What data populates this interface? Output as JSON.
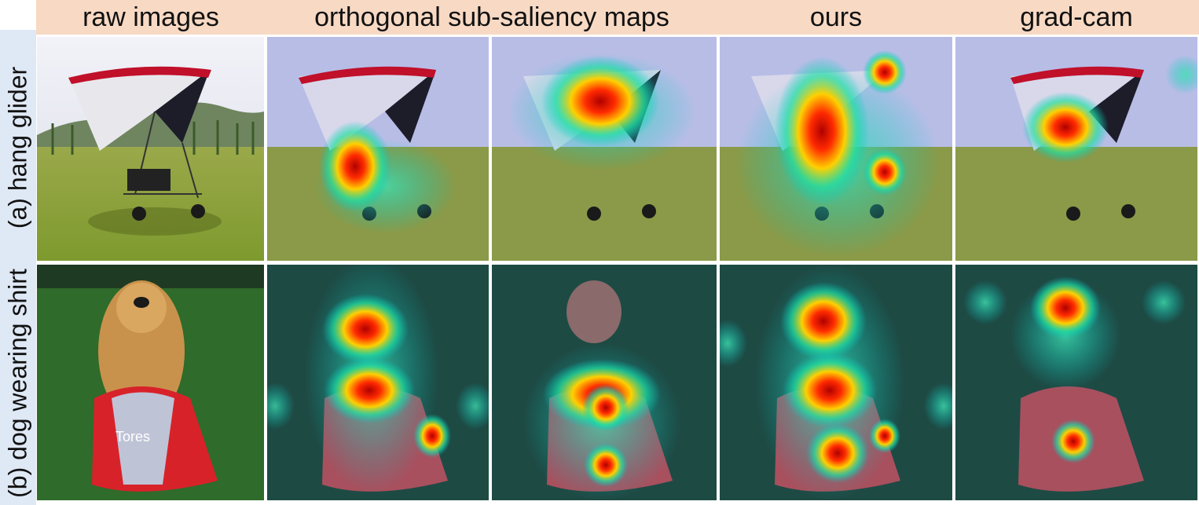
{
  "column_headers": [
    "raw images",
    "orthogonal sub-saliency maps",
    "ours",
    "grad-cam"
  ],
  "rows": [
    {
      "label": "(a) hang glider",
      "panels": [
        "raw image",
        "orthogonal sub-saliency map 1",
        "orthogonal sub-saliency map 2",
        "ours",
        "grad-cam"
      ]
    },
    {
      "label": "(b) dog wearing shirt",
      "panels": [
        "raw image",
        "orthogonal sub-saliency map 1",
        "orthogonal sub-saliency map 2",
        "ours",
        "grad-cam"
      ]
    }
  ],
  "colors": {
    "header_band": "#f7d9c4",
    "side_band": "#dfe8f5",
    "heat_hot": "#b00000",
    "heat_warm": "#ffd000",
    "heat_cool": "#00c8c8"
  },
  "shirt_text": "Tores"
}
